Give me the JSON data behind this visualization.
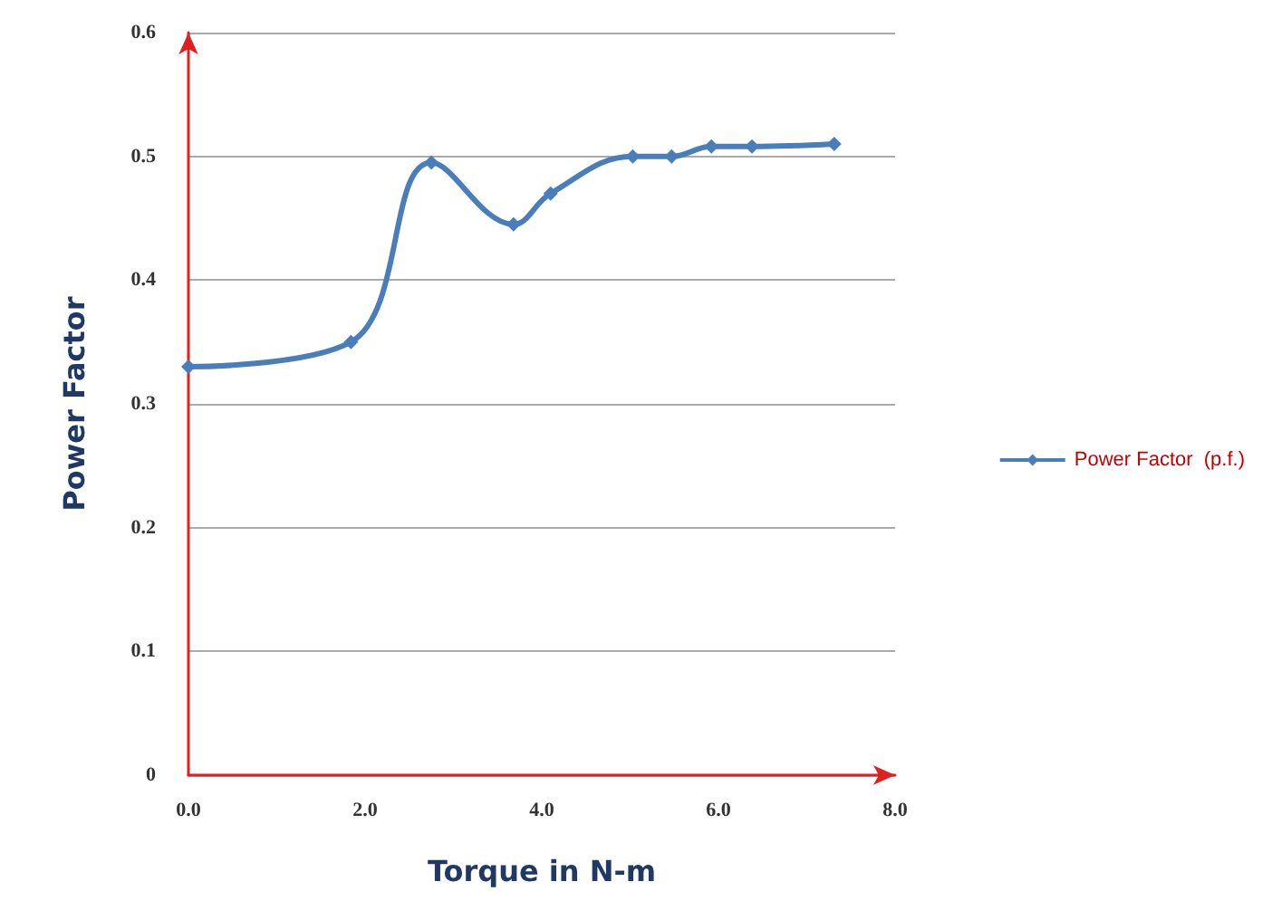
{
  "chart_data": {
    "type": "line",
    "xlabel": "Torque in N-m",
    "ylabel": "Power Factor",
    "series": [
      {
        "name": "Power Factor  (p.f.)",
        "color": "#4a7ebb",
        "x": [
          0,
          1.84,
          2.75,
          3.68,
          4.1,
          5.03,
          5.47,
          5.92,
          6.38,
          7.31
        ],
        "values": [
          0.33,
          0.35,
          0.495,
          0.445,
          0.47,
          0.5,
          0.5,
          0.508,
          0.508,
          0.51
        ]
      }
    ],
    "xlim": [
      0,
      8
    ],
    "xticks": [
      {
        "value": 0,
        "label": "0.0"
      },
      {
        "value": 2,
        "label": "2.0"
      },
      {
        "value": 4,
        "label": "4.0"
      },
      {
        "value": 6,
        "label": "6.0"
      },
      {
        "value": 8,
        "label": "8.0"
      }
    ],
    "ylim": [
      0,
      0.6
    ],
    "yticks": [
      0,
      0.1,
      0.2,
      0.3,
      0.4,
      0.5,
      0.6
    ],
    "grid": "y",
    "legend": "right",
    "marker": "diamond",
    "line_style": "solid"
  }
}
